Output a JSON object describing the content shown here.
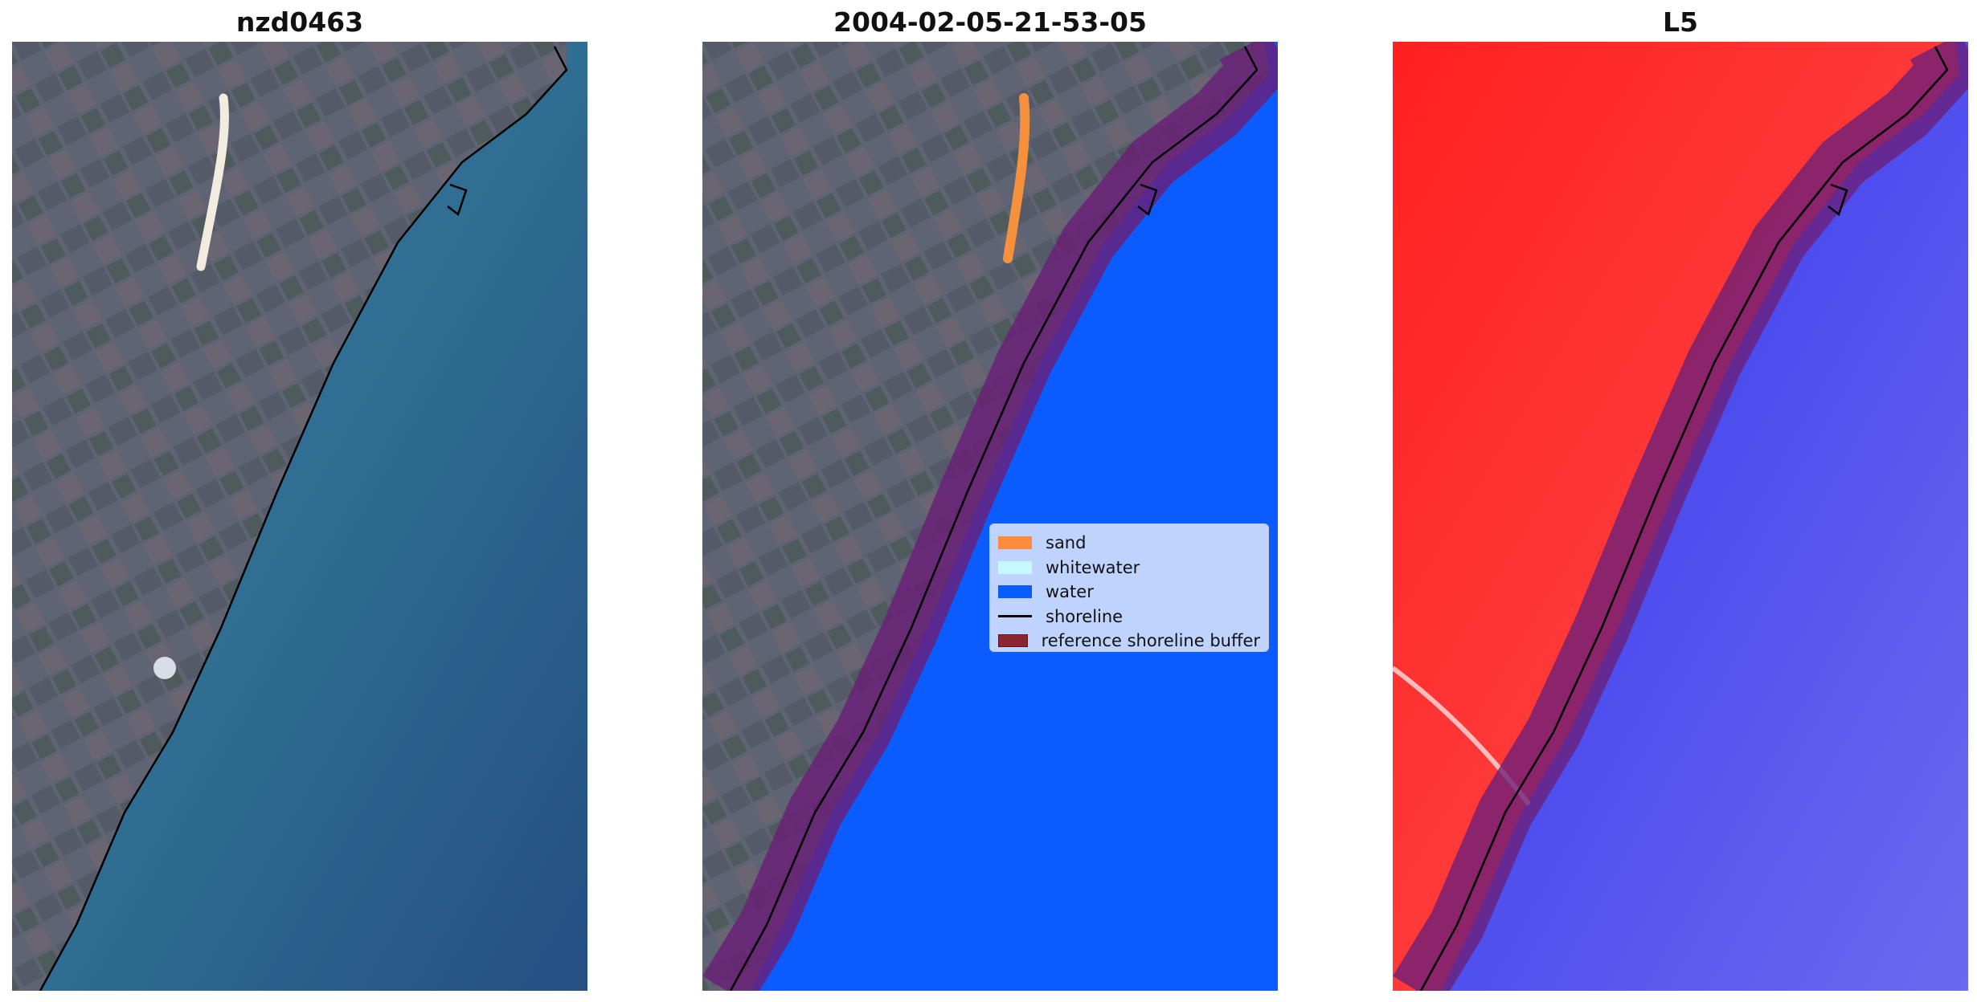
{
  "panels": [
    {
      "title": "nzd0463"
    },
    {
      "title": "2004-02-05-21-53-05"
    },
    {
      "title": "L5"
    }
  ],
  "legend": {
    "items": [
      {
        "label": "sand",
        "color": "#ff8c3c",
        "kind": "patch"
      },
      {
        "label": "whitewater",
        "color": "#c8f8ff",
        "kind": "patch"
      },
      {
        "label": "water",
        "color": "#0a5cff",
        "kind": "patch"
      },
      {
        "label": "shoreline",
        "color": "#000000",
        "kind": "line"
      },
      {
        "label": "reference shoreline buffer",
        "color": "#8b2530",
        "kind": "patch"
      }
    ]
  },
  "colors": {
    "land_rgb": "#5e6373",
    "ocean_rgb": "#2a6a8e",
    "water_class": "#0a5cff",
    "sand_class": "#f5913c",
    "buffer": "#7a1f6a",
    "index_positive": "#ff2a2a",
    "index_negative": "#4444ee"
  }
}
